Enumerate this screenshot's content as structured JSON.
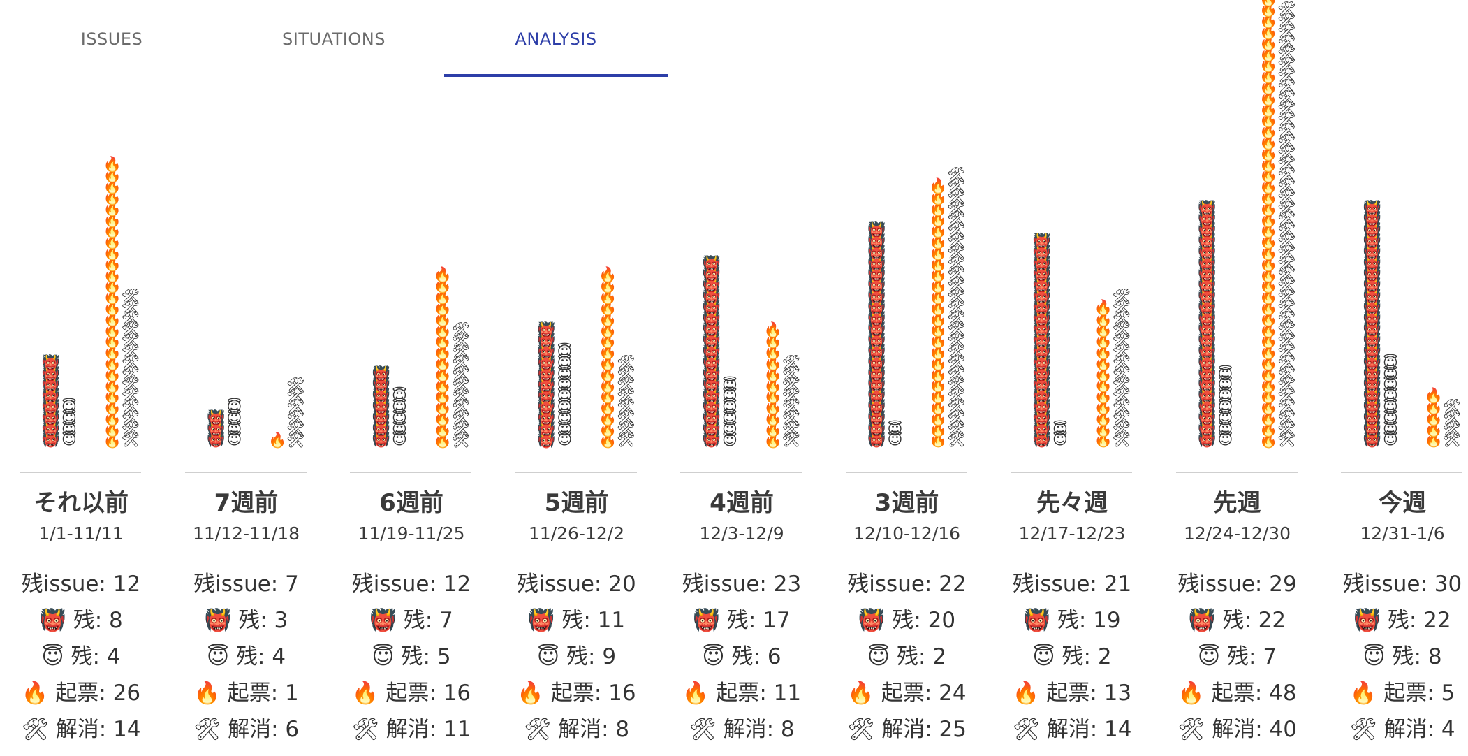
{
  "tabs": [
    {
      "label": "ISSUES",
      "active": false
    },
    {
      "label": "SITUATIONS",
      "active": false
    },
    {
      "label": "ANALYSIS",
      "active": true
    }
  ],
  "icons": {
    "oni": "👹",
    "angel": "😇",
    "fire": "🔥",
    "tools": "🛠"
  },
  "labels": {
    "remaining_issue": "残issue: ",
    "oni_remaining": "残: ",
    "angel_remaining": "残: ",
    "opened": "起票: ",
    "resolved": "解消: "
  },
  "chart_data": {
    "type": "bar",
    "title": "",
    "categories": [
      "それ以前",
      "7週前",
      "6週前",
      "5週前",
      "4週前",
      "3週前",
      "先々週",
      "先週",
      "今週"
    ],
    "date_ranges": [
      "1/1-11/11",
      "11/12-11/18",
      "11/19-11/25",
      "11/26-12/2",
      "12/3-12/9",
      "12/10-12/16",
      "12/17-12/23",
      "12/24-12/30",
      "12/31-1/6"
    ],
    "series": [
      {
        "name": "👹 残",
        "icon": "👹",
        "values": [
          8,
          3,
          7,
          11,
          17,
          20,
          19,
          22,
          22
        ]
      },
      {
        "name": "😇 残",
        "icon": "😇",
        "values": [
          4,
          4,
          5,
          9,
          6,
          2,
          2,
          7,
          8
        ]
      },
      {
        "name": "🔥 起票",
        "icon": "🔥",
        "values": [
          26,
          1,
          16,
          16,
          11,
          24,
          13,
          48,
          5
        ]
      },
      {
        "name": "🛠 解消",
        "icon": "🛠",
        "values": [
          14,
          6,
          11,
          8,
          8,
          25,
          14,
          40,
          4
        ]
      }
    ],
    "remaining_issue": [
      12,
      7,
      12,
      20,
      23,
      22,
      21,
      29,
      30
    ]
  }
}
